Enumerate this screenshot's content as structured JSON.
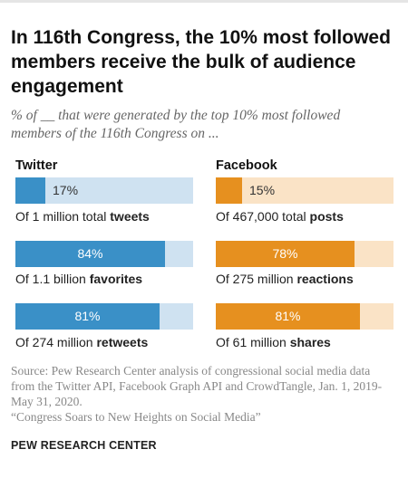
{
  "title": "In 116th Congress, the 10% most followed members receive the bulk of audience engagement",
  "subtitle": "% of __ that were generated by the top 10% most followed members of the 116th Congress on ...",
  "colors": {
    "twitter_fill": "#3a90c7",
    "twitter_track": "#cfe2f1",
    "facebook_fill": "#e6901f",
    "facebook_track": "#fae3c6"
  },
  "chart_data": [
    {
      "type": "bar",
      "title": "Twitter",
      "categories": [
        "tweets",
        "favorites",
        "retweets"
      ],
      "values": [
        17,
        84,
        81
      ],
      "ylim": [
        0,
        100
      ],
      "value_labels": [
        "17%",
        "84%",
        "81%"
      ],
      "captions": [
        {
          "pre": "Of 1 million total ",
          "bold": "tweets"
        },
        {
          "pre": "Of 1.1 billion ",
          "bold": "favorites"
        },
        {
          "pre": "Of 274 million ",
          "bold": "retweets"
        }
      ]
    },
    {
      "type": "bar",
      "title": "Facebook",
      "categories": [
        "posts",
        "reactions",
        "shares"
      ],
      "values": [
        15,
        78,
        81
      ],
      "ylim": [
        0,
        100
      ],
      "value_labels": [
        "15%",
        "78%",
        "81%"
      ],
      "captions": [
        {
          "pre": "Of 467,000 total ",
          "bold": "posts"
        },
        {
          "pre": "Of 275 million ",
          "bold": "reactions"
        },
        {
          "pre": "Of 61 million ",
          "bold": "shares"
        }
      ]
    }
  ],
  "source": {
    "line1": "Source: Pew Research Center analysis of congressional social media data from the Twitter API, Facebook Graph API and CrowdTangle, Jan. 1, 2019-May 31, 2020.",
    "line2": "“Congress Soars to New Heights on Social Media”"
  },
  "brand": "PEW RESEARCH CENTER"
}
